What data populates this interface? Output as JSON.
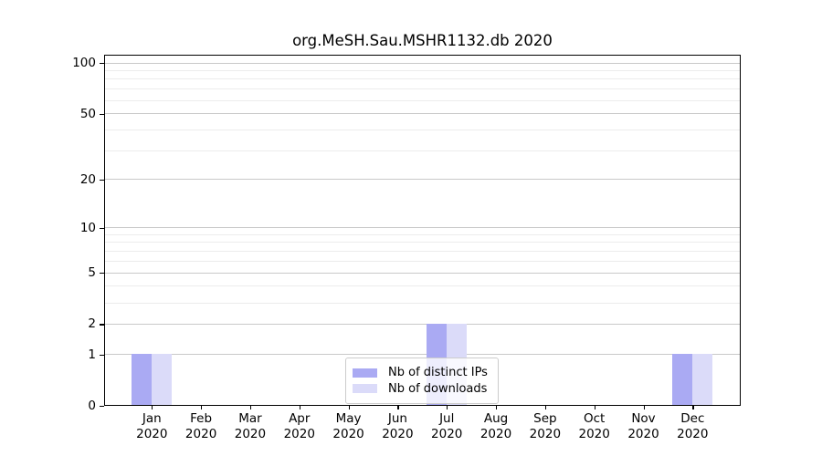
{
  "chart_data": {
    "type": "bar",
    "title": "org.MeSH.Sau.MSHR1132.db 2020",
    "x": {
      "months": [
        "Jan",
        "Feb",
        "Mar",
        "Apr",
        "May",
        "Jun",
        "Jul",
        "Aug",
        "Sep",
        "Oct",
        "Nov",
        "Dec"
      ],
      "year": "2020"
    },
    "y": {
      "scale": "log10(value+1)",
      "labeled_ticks": [
        0,
        1,
        2,
        5,
        10,
        20,
        50,
        100
      ],
      "major_gridlines": [
        1,
        2,
        5,
        10,
        20,
        50,
        100
      ],
      "minor_gridlines": [
        3,
        4,
        6,
        7,
        8,
        9,
        30,
        40,
        60,
        70,
        80,
        90
      ],
      "ylim": [
        0,
        112
      ],
      "grid": "horizontal"
    },
    "series": [
      {
        "name": "Nb of distinct IPs",
        "color": "#aaaaf3",
        "values": [
          1,
          0,
          0,
          0,
          0,
          0,
          2,
          0,
          0,
          0,
          0,
          1
        ]
      },
      {
        "name": "Nb of downloads",
        "color": "#dbdbf9",
        "values": [
          1,
          0,
          0,
          0,
          0,
          0,
          2,
          0,
          0,
          0,
          0,
          1
        ]
      }
    ],
    "legend": {
      "position": "bottom-center",
      "entries": [
        "Nb of distinct IPs",
        "Nb of downloads"
      ]
    }
  },
  "colors": {
    "axis": "#000000",
    "grid_major": "#c9c9c9",
    "grid_minor": "#ececec",
    "legend_border": "#cccccc",
    "background": "#ffffff"
  }
}
